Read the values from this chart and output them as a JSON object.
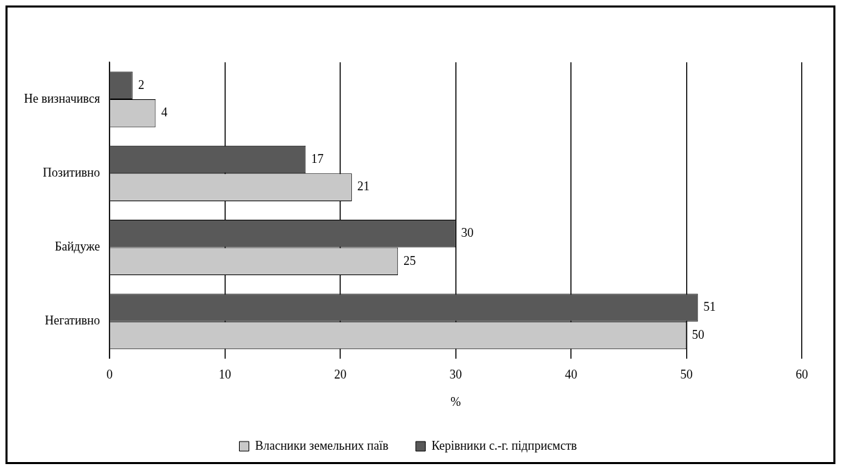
{
  "chart_data": {
    "type": "bar",
    "orientation": "horizontal",
    "categories": [
      "Не визначився",
      "Позитивно",
      "Байдуже",
      "Негативно"
    ],
    "series": [
      {
        "name": "Керівники с.-г. підприємств",
        "color": "#595959",
        "values": [
          2,
          17,
          30,
          51
        ]
      },
      {
        "name": "Власники земельних паїв",
        "color": "#c8c8c8",
        "values": [
          4,
          21,
          25,
          50
        ]
      }
    ],
    "xlim": [
      0,
      60
    ],
    "xticks": [
      0,
      10,
      20,
      30,
      40,
      50,
      60
    ],
    "xlabel": "%",
    "grid": "x",
    "legend": "bottom",
    "data_labels": true
  }
}
